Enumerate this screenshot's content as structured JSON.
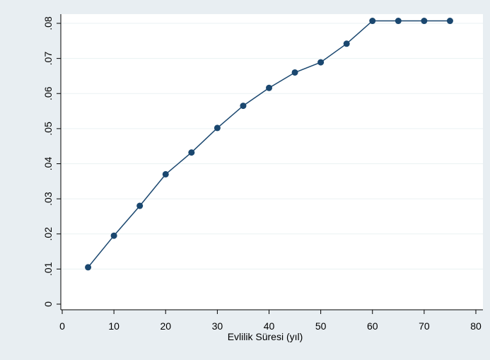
{
  "chart_data": {
    "type": "line",
    "title": "",
    "xlabel": "Evlilik Süresi (yıl)",
    "ylabel": "",
    "xlim": [
      0,
      80
    ],
    "ylim": [
      0,
      0.08
    ],
    "x_ticks": [
      "0",
      "10",
      "20",
      "30",
      "40",
      "50",
      "60",
      "70",
      "80"
    ],
    "x_tick_values": [
      0,
      10,
      20,
      30,
      40,
      50,
      60,
      70,
      80
    ],
    "y_ticks": [
      "0",
      ".01",
      ".02",
      ".03",
      ".04",
      ".05",
      ".06",
      ".07",
      ".08"
    ],
    "y_tick_values": [
      0,
      0.01,
      0.02,
      0.03,
      0.04,
      0.05,
      0.06,
      0.07,
      0.08
    ],
    "grid": true,
    "series": [
      {
        "x": [
          5,
          10,
          15,
          20,
          25,
          30,
          35,
          40,
          45,
          50,
          55,
          60,
          65,
          70,
          75
        ],
        "values": [
          0.0105,
          0.0195,
          0.028,
          0.037,
          0.0432,
          0.0502,
          0.0565,
          0.0616,
          0.066,
          0.0689,
          0.0742,
          0.0807,
          0.0807,
          0.0807,
          0.0807
        ],
        "color": "#1a476f"
      }
    ],
    "colors": {
      "outer_background": "#e8eef2",
      "plot_background": "#ffffff",
      "grid": "#eaf2f3",
      "series": "#1a476f"
    }
  }
}
